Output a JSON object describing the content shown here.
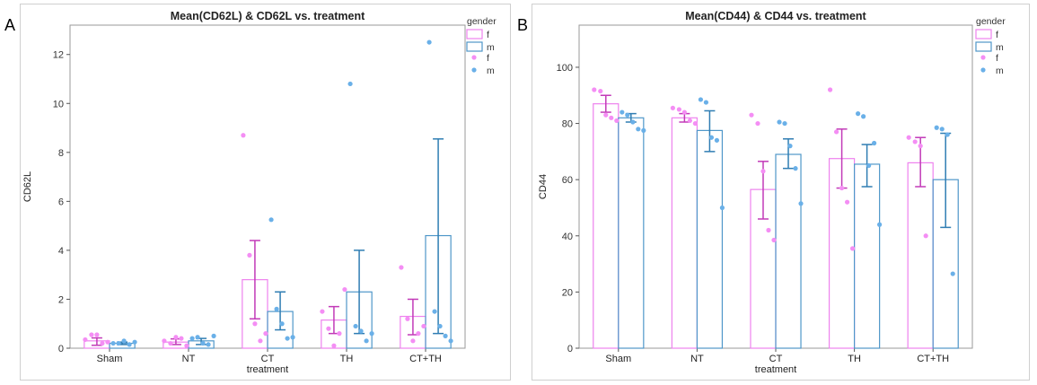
{
  "panels": [
    {
      "letter": "A"
    },
    {
      "letter": "B"
    }
  ],
  "colors": {
    "f": "#ee82ee",
    "m": "#4f97c9",
    "f_point": "#f48ef4",
    "m_point": "#6ab0e8",
    "axis": "#555555"
  },
  "chart_data": [
    {
      "type": "bar",
      "title": "Mean(CD62L) & CD62L vs. treatment",
      "xlabel": "treatment",
      "ylabel": "CD62L",
      "ylim": [
        0,
        13.2
      ],
      "yticks": [
        0,
        2,
        4,
        6,
        8,
        10,
        12
      ],
      "categories": [
        "Sham",
        "NT",
        "CT",
        "TH",
        "CT+TH"
      ],
      "legend": {
        "title": "gender",
        "bar_labels": [
          "f",
          "m"
        ],
        "point_labels": [
          "f",
          "m"
        ],
        "placement": "right"
      },
      "series": [
        {
          "name": "f",
          "values": [
            0.3,
            0.25,
            2.8,
            1.15,
            1.3
          ],
          "err_low": [
            0.12,
            0.15,
            1.2,
            0.6,
            0.55
          ],
          "err_high": [
            0.42,
            0.38,
            4.4,
            1.7,
            2.0
          ]
        },
        {
          "name": "m",
          "values": [
            0.2,
            0.3,
            1.5,
            2.3,
            4.6
          ],
          "err_low": [
            0.15,
            0.15,
            0.75,
            0.6,
            0.6
          ],
          "err_high": [
            0.25,
            0.4,
            2.3,
            4.0,
            8.55
          ]
        }
      ],
      "points": {
        "f": [
          [
            0.35,
            0.55,
            0.55,
            0.2,
            0.25
          ],
          [
            0.3,
            0.2,
            0.45,
            0.4,
            0.1
          ],
          [
            8.7,
            3.8,
            1.0,
            0.3,
            0.6
          ],
          [
            1.5,
            0.8,
            0.1,
            0.6,
            2.4
          ],
          [
            3.3,
            1.2,
            0.3,
            0.6,
            0.9
          ]
        ],
        "m": [
          [
            0.2,
            0.2,
            0.3,
            0.15,
            0.25
          ],
          [
            0.4,
            0.45,
            0.2,
            0.15,
            0.5
          ],
          [
            5.25,
            1.6,
            1.0,
            0.4,
            0.45
          ],
          [
            10.8,
            0.9,
            0.7,
            0.3,
            0.6
          ],
          [
            12.5,
            1.5,
            0.9,
            0.5,
            0.3
          ]
        ]
      }
    },
    {
      "type": "bar",
      "title": "Mean(CD44) & CD44 vs. treatment",
      "xlabel": "treatment",
      "ylabel": "CD44",
      "ylim": [
        0,
        115
      ],
      "yticks": [
        0,
        20,
        40,
        60,
        80,
        100
      ],
      "categories": [
        "Sham",
        "NT",
        "CT",
        "TH",
        "CT+TH"
      ],
      "legend": {
        "title": "gender",
        "bar_labels": [
          "f",
          "m"
        ],
        "point_labels": [
          "f",
          "m"
        ],
        "placement": "right"
      },
      "series": [
        {
          "name": "f",
          "values": [
            87,
            82,
            56.5,
            67.5,
            66
          ],
          "err_low": [
            84,
            80.5,
            46,
            57,
            57.5
          ],
          "err_high": [
            90,
            83.5,
            66.5,
            78,
            75
          ]
        },
        {
          "name": "m",
          "values": [
            82,
            77.5,
            69,
            65.5,
            60
          ],
          "err_low": [
            80.5,
            70,
            64,
            57.5,
            43
          ],
          "err_high": [
            83.5,
            84.5,
            74.5,
            72.5,
            76.5
          ]
        }
      ],
      "points": {
        "f": [
          [
            92,
            91.5,
            83,
            82,
            81
          ],
          [
            85.5,
            85,
            84,
            81,
            80
          ],
          [
            83,
            80,
            63,
            42,
            38.5
          ],
          [
            92,
            77,
            57,
            52,
            35.5
          ],
          [
            75,
            73.5,
            72,
            40
          ]
        ],
        "m": [
          [
            84,
            83,
            80.5,
            78,
            77.5
          ],
          [
            88.5,
            87.5,
            75,
            74,
            50
          ],
          [
            80.5,
            80,
            72,
            64,
            51.5
          ],
          [
            83.5,
            82.5,
            65,
            73,
            44
          ],
          [
            78.5,
            78,
            76,
            26.5
          ]
        ]
      }
    }
  ]
}
